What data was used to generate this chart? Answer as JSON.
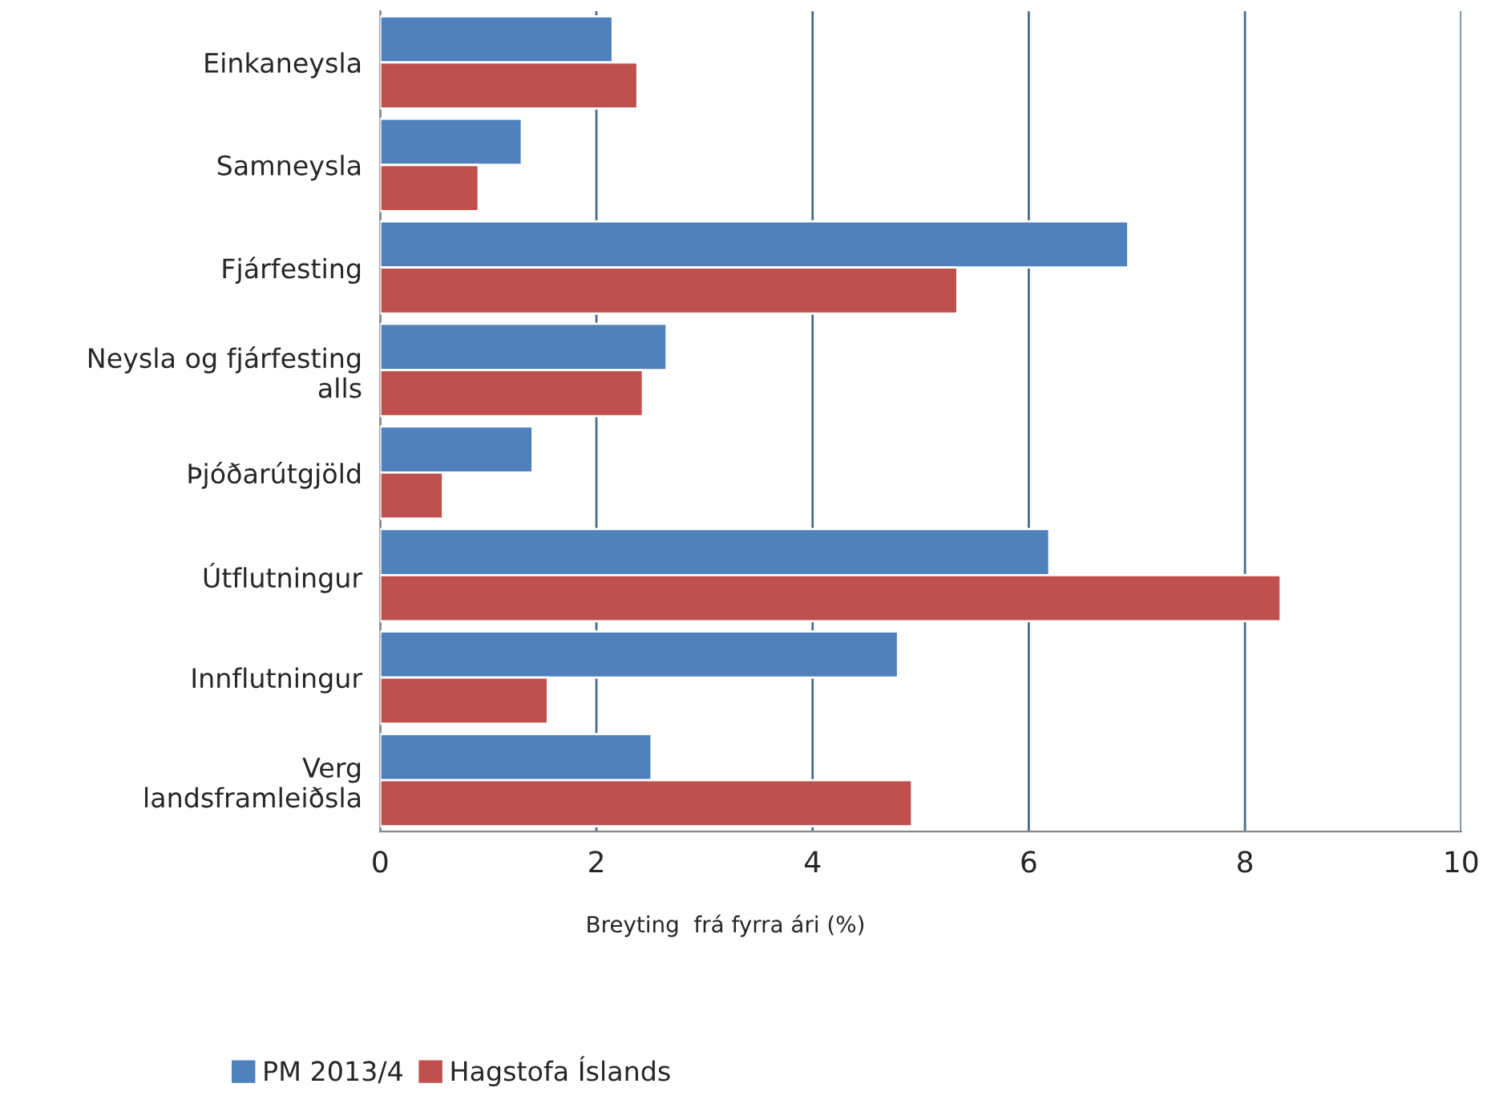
{
  "chart_data": {
    "type": "bar",
    "orientation": "horizontal",
    "xlabel": "Breyting  frá fyrra ári (%)",
    "categories": [
      "Einkaneysla",
      "Samneysla",
      "Fjárfesting",
      "Neysla og fjárfesting\nalls",
      "Þjóðarútgjöld",
      "Útflutningur",
      "Innflutningur",
      "Verg\nlandsframleiðsla"
    ],
    "series": [
      {
        "name": "PM 2013/4",
        "color": "#4f81bd",
        "values": [
          2.15,
          1.31,
          6.92,
          2.65,
          1.41,
          6.19,
          4.79,
          2.51
        ]
      },
      {
        "name": "Hagstofa Íslands",
        "color": "#c0504d",
        "values": [
          2.38,
          0.91,
          5.34,
          2.43,
          0.58,
          8.33,
          1.55,
          4.92
        ]
      }
    ],
    "xlim": [
      0,
      10
    ],
    "xticks": [
      0,
      2,
      4,
      6,
      8,
      10
    ],
    "grid": "x",
    "legend": "bottom"
  }
}
